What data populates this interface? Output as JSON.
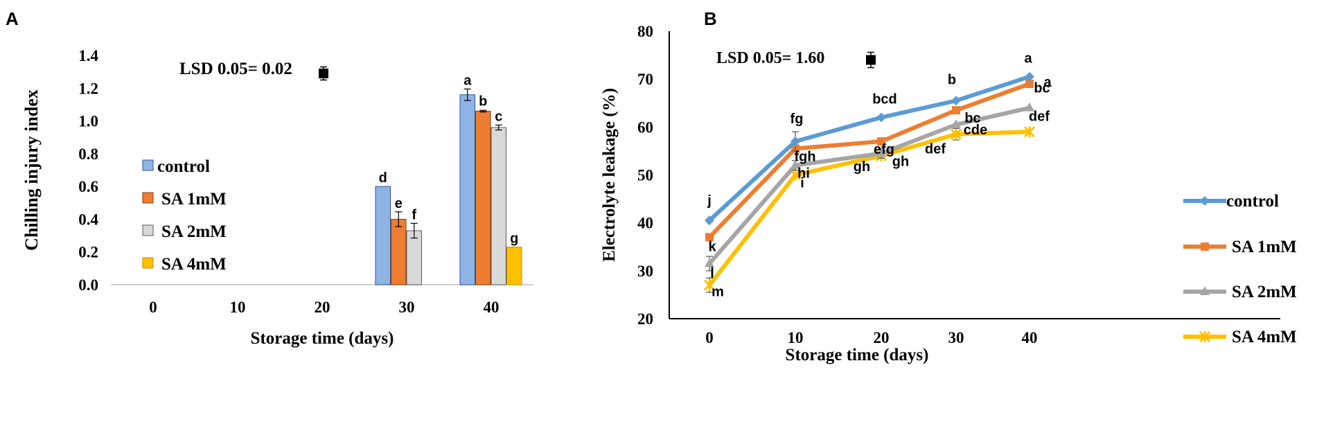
{
  "panels": [
    {
      "letter": "A"
    },
    {
      "letter": "B"
    }
  ],
  "chart_data": [
    {
      "type": "bar",
      "title": "",
      "xlabel": "Storage time (days)",
      "ylabel": "Chilling injury index",
      "ylim": [
        0,
        1.4
      ],
      "yticks": [
        "0.0",
        "0.2",
        "0.4",
        "0.6",
        "0.8",
        "1.0",
        "1.2",
        "1.4"
      ],
      "categories": [
        "0",
        "10",
        "20",
        "30",
        "40"
      ],
      "annotation": "LSD 0.05= 0.02",
      "lsd": {
        "value": 0.02,
        "center": 1.29
      },
      "legend_position": "left-middle",
      "series": [
        {
          "name": "control",
          "color": "#8EB4E3",
          "edge": "#2F5597",
          "values": [
            0,
            0,
            0,
            0.6,
            1.16
          ],
          "errors": [
            0,
            0,
            0,
            0,
            0.035
          ],
          "letters": [
            "",
            "",
            "",
            "d",
            "a"
          ]
        },
        {
          "name": "SA 1mM",
          "color": "#ED7D31",
          "edge": "#843C0C",
          "values": [
            0,
            0,
            0,
            0.4,
            1.06
          ],
          "errors": [
            0,
            0,
            0,
            0.045,
            0.005
          ],
          "letters": [
            "",
            "",
            "",
            "e",
            "b"
          ]
        },
        {
          "name": "SA 2mM",
          "color": "#D9D9D9",
          "edge": "#595959",
          "values": [
            0,
            0,
            0,
            0.33,
            0.96
          ],
          "errors": [
            0,
            0,
            0,
            0.045,
            0.015
          ],
          "letters": [
            "",
            "",
            "",
            "f",
            "c"
          ]
        },
        {
          "name": "SA 4mM",
          "color": "#FFC000",
          "edge": "#BF9000",
          "values": [
            0,
            0,
            0,
            0,
            0.23
          ],
          "errors": [
            0,
            0,
            0,
            0,
            0
          ],
          "letters": [
            "",
            "",
            "",
            "",
            "g"
          ]
        }
      ]
    },
    {
      "type": "line",
      "title": "",
      "xlabel": "Storage time (days)",
      "ylabel": "Electrolyte leakage (%)",
      "ylim": [
        20,
        80
      ],
      "yticks": [
        "20",
        "30",
        "40",
        "50",
        "60",
        "70",
        "80"
      ],
      "x": [
        "0",
        "10",
        "20",
        "30",
        "40"
      ],
      "annotation": "LSD 0.05= 1.60",
      "lsd": {
        "value": 1.6,
        "center": 74
      },
      "legend_position": "right",
      "series": [
        {
          "name": "control",
          "color": "#5B9BD5",
          "marker": "diamond",
          "values": [
            40.5,
            57,
            62,
            65.5,
            70.5
          ],
          "errors": [
            0,
            2,
            0,
            0,
            0
          ],
          "letters": [
            "j",
            "fg",
            "bcd",
            "b",
            "a"
          ]
        },
        {
          "name": "SA 1mM",
          "color": "#ED7D31",
          "marker": "square",
          "values": [
            37,
            55.5,
            57,
            63.5,
            69
          ],
          "errors": [
            0,
            0,
            0,
            0,
            0
          ],
          "letters": [
            "k",
            "fgh",
            "efg",
            "bc",
            "a"
          ]
        },
        {
          "name": "SA 2mM",
          "color": "#A5A5A5",
          "marker": "triangle",
          "values": [
            31.5,
            52,
            54.5,
            60.5,
            64
          ],
          "errors": [
            1.5,
            1,
            1,
            0,
            0
          ],
          "letters": [
            "l",
            "hi",
            "gh",
            "cde",
            "bc"
          ]
        },
        {
          "name": "SA 4mM",
          "color": "#FFC000",
          "marker": "cross",
          "values": [
            27,
            50,
            54,
            58.5,
            59
          ],
          "errors": [
            1.5,
            0,
            0,
            1.2,
            0
          ],
          "letters": [
            "m",
            "i",
            "gh",
            "def",
            "def"
          ]
        }
      ]
    }
  ]
}
